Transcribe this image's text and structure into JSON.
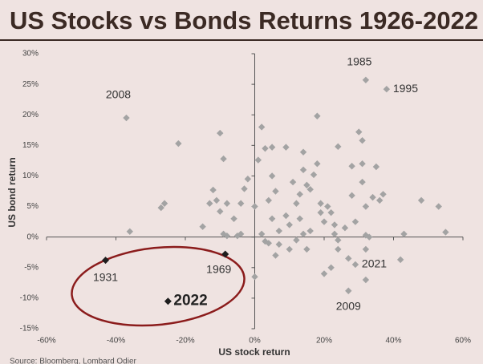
{
  "chart_data": {
    "type": "scatter",
    "title": "US Stocks vs Bonds Returns 1926-2022",
    "xlabel": "US stock return",
    "ylabel": "US bond return",
    "source": "Source: Bloomberg, Lombard Odier",
    "xlim": [
      -60,
      60
    ],
    "ylim": [
      -15,
      30
    ],
    "xticks": [
      {
        "value": -60,
        "label": "-60%"
      },
      {
        "value": -40,
        "label": "-40%"
      },
      {
        "value": -20,
        "label": "-20%"
      },
      {
        "value": 0,
        "label": "0%"
      },
      {
        "value": 20,
        "label": "20%"
      },
      {
        "value": 40,
        "label": "40%"
      },
      {
        "value": 60,
        "label": "60%"
      }
    ],
    "yticks": [
      {
        "value": -15,
        "label": "-15%"
      },
      {
        "value": -10,
        "label": "-10%"
      },
      {
        "value": -5,
        "label": "-5%"
      },
      {
        "value": 0,
        "label": "0%"
      },
      {
        "value": 5,
        "label": "5%"
      },
      {
        "value": 10,
        "label": "10%"
      },
      {
        "value": 15,
        "label": "15%"
      },
      {
        "value": 20,
        "label": "20%"
      },
      {
        "value": 25,
        "label": "25%"
      },
      {
        "value": 30,
        "label": "30%"
      }
    ],
    "series": [
      {
        "color": "#a3a3a3",
        "x": [
          -37,
          32,
          38,
          29,
          27,
          -22,
          -36,
          -27,
          -26,
          -10,
          -9,
          -12,
          -13,
          -10,
          -11,
          -8,
          -9,
          -8,
          -5,
          -15,
          -6,
          -4,
          -3,
          -2,
          0,
          1,
          2,
          3,
          5,
          5,
          4,
          6,
          5,
          7,
          4,
          6,
          2,
          0,
          9,
          11,
          12,
          14,
          14,
          15,
          16,
          17,
          13,
          13,
          14,
          12,
          10,
          18,
          19,
          18,
          20,
          21,
          22,
          23,
          23,
          24,
          24,
          24,
          22,
          20,
          26,
          27,
          28,
          28,
          29,
          30,
          31,
          31,
          31,
          32,
          32,
          32,
          32,
          33,
          34,
          35,
          36,
          37,
          43,
          42,
          48,
          53,
          55,
          15,
          10,
          7,
          3,
          9,
          16,
          19,
          -4
        ],
        "y": [
          19.5,
          25.7,
          24.2,
          -4.5,
          -8.8,
          15.3,
          0.9,
          4.8,
          5.5,
          17,
          12.8,
          7.7,
          5.5,
          4.2,
          6,
          5.5,
          0.5,
          0.2,
          0.2,
          1.7,
          3,
          5.5,
          7.9,
          9.5,
          5,
          12.6,
          18,
          14.5,
          14.7,
          10,
          6,
          7.5,
          3,
          1,
          -1,
          -3,
          0.5,
          -6.5,
          14.7,
          9,
          5.5,
          13.9,
          11,
          8.5,
          7.8,
          10.2,
          7,
          3,
          0.5,
          -0.5,
          2,
          19.8,
          4,
          12,
          2.5,
          5,
          4,
          2,
          0.5,
          14.8,
          -0.5,
          -2,
          -5,
          -6,
          1.5,
          -3.5,
          6.8,
          11.6,
          2.5,
          17.2,
          15.8,
          12,
          9,
          5,
          0.3,
          -2,
          -7,
          0,
          6.5,
          11.5,
          6,
          7,
          0.5,
          -3.7,
          6,
          5,
          0.8,
          -2,
          -2,
          -1.2,
          -0.7,
          3.5,
          1,
          5.5,
          0.5
        ]
      },
      {
        "color": "#1e1e1e",
        "x": [
          -43,
          -8.5,
          -25
        ],
        "y": [
          -3.8,
          -2.8,
          -10.5
        ]
      }
    ],
    "annotations": [
      "2008",
      "1985",
      "1995",
      "2021",
      "2009",
      "1931",
      "1969",
      "2022"
    ]
  }
}
